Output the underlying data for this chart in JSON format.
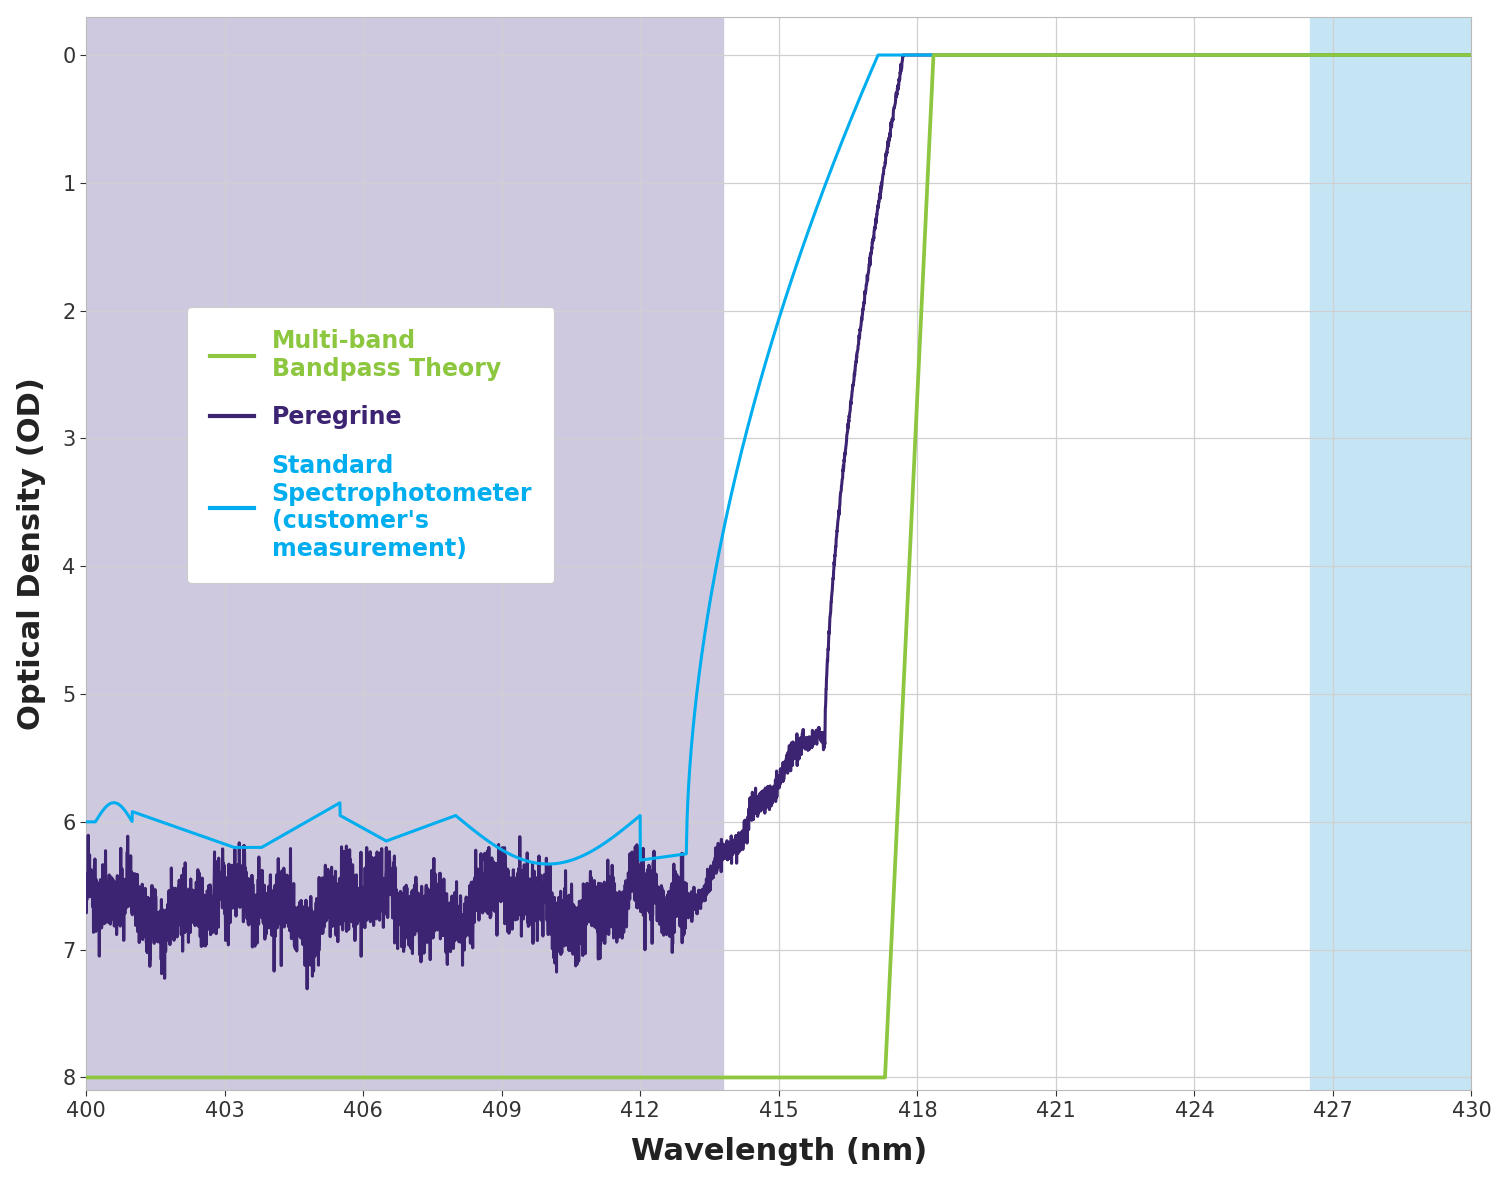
{
  "xlabel": "Wavelength (nm)",
  "ylabel": "Optical Density (OD)",
  "xlim": [
    400,
    430
  ],
  "ylim": [
    8.1,
    -0.3
  ],
  "xticks": [
    400,
    403,
    406,
    409,
    412,
    415,
    418,
    421,
    424,
    427,
    430
  ],
  "yticks": [
    0,
    1,
    2,
    3,
    4,
    5,
    6,
    7,
    8
  ],
  "fig_bg_color": "#ffffff",
  "ax_bg_color": "#ffffff",
  "purple_band_color": "#cfc9e0",
  "blue_band_color": "#c5e5f5",
  "purple_band_xmin": 400,
  "purple_band_xmax": 413.8,
  "blue_band_xmin": 426.5,
  "blue_band_xmax": 430,
  "grid_color": "#d0d0d0",
  "line_green_color": "#8dc63f",
  "line_purple_color": "#3d2472",
  "line_cyan_color": "#00aeef",
  "legend_labels": [
    "Multi-band\nBandpass Theory",
    "Peregrine",
    "Standard\nSpectrophotometer\n(customer's\nmeasurement)"
  ]
}
